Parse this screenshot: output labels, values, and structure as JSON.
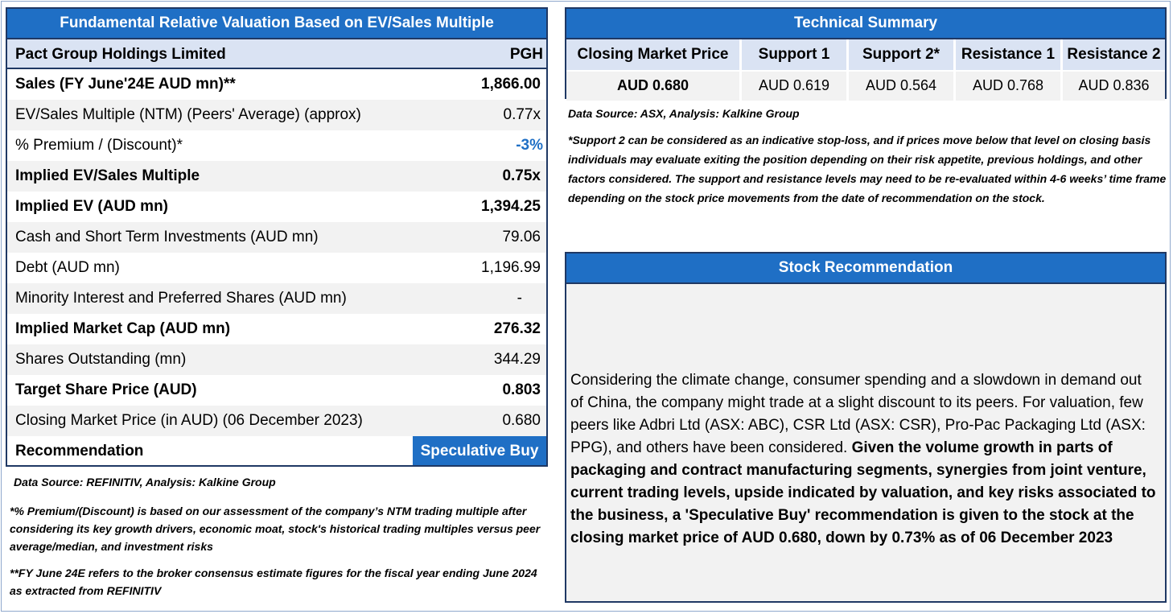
{
  "valuation": {
    "title": "Fundamental Relative Valuation Based on EV/Sales Multiple",
    "company": {
      "label": "Pact Group Holdings Limited",
      "ticker": "PGH"
    },
    "rows": [
      {
        "label": "Sales (FY June'24E AUD mn)**",
        "value": "1,866.00"
      },
      {
        "label": "EV/Sales Multiple (NTM)  (Peers' Average) (approx)",
        "value": "0.77x"
      },
      {
        "label": "% Premium / (Discount)*",
        "value": "-3%"
      },
      {
        "label": "Implied EV/Sales Multiple",
        "value": "0.75x"
      },
      {
        "label": "Implied EV (AUD mn)",
        "value": "1,394.25"
      },
      {
        "label": "Cash and Short Term Investments (AUD mn)",
        "value": "79.06"
      },
      {
        "label": "Debt (AUD mn)",
        "value": "1,196.99"
      },
      {
        "label": "Minority Interest and Preferred Shares (AUD mn)",
        "value": "-"
      },
      {
        "label": "Implied Market Cap (AUD mn)",
        "value": "276.32"
      },
      {
        "label": "Shares Outstanding (mn)",
        "value": "344.29"
      },
      {
        "label": "Target Share Price (AUD)",
        "value": "0.803"
      },
      {
        "label": "Closing Market Price (in AUD) (06 December 2023)",
        "value": "0.680"
      },
      {
        "label": "Recommendation",
        "value": "Speculative Buy"
      }
    ],
    "source": "Data Source: REFINITIV, Analysis: Kalkine Group",
    "note1": "*% Premium/(Discount) is based on our assessment of the company’s NTM trading multiple after considering its key growth drivers, economic moat, stock's historical trading multiples versus peer average/median, and investment risks",
    "note2": "**FY June 24E refers to the broker consensus estimate figures for the fiscal year ending June 2024 as extracted from REFINITIV"
  },
  "technical": {
    "title": "Technical Summary",
    "headers": [
      "Closing Market Price",
      "Support 1",
      "Support 2*",
      "Resistance 1",
      "Resistance 2"
    ],
    "values": [
      "AUD 0.680",
      "AUD 0.619",
      "AUD 0.564",
      "AUD 0.768",
      "AUD 0.836"
    ],
    "source": "Data Source: ASX, Analysis: Kalkine Group",
    "note": "*Support 2 can be considered as an indicative stop-loss, and if prices move below that level on closing basis individuals may evaluate exiting the position depending on their risk appetite, previous holdings, and other factors considered. The support and resistance levels may need to be re-evaluated within 4-6 weeks’ time frame depending on the stock price movements from the date of recommendation on the stock."
  },
  "recommendation": {
    "title": "Stock Recommendation",
    "text_regular": "Considering the climate change, consumer spending and a slowdown in demand out of China, the company might trade at a slight discount to its peers. For valuation, few peers like Adbri Ltd (ASX: ABC), CSR Ltd (ASX: CSR), Pro-Pac Packaging Ltd (ASX: PPG), and others have been considered. ",
    "text_bold": "Given the volume growth in parts of packaging and contract manufacturing segments, synergies from joint venture, current trading levels, upside indicated by valuation, and key risks associated to the business, a 'Speculative Buy' recommendation is given to the stock at the closing market price of AUD 0.680, down by 0.73% as of 06 December 2023"
  },
  "colors": {
    "header_blue": "#1f6fc5",
    "border_navy": "#1f3864",
    "light_blue": "#dae3f3",
    "row_gray": "#f2f2f2"
  }
}
